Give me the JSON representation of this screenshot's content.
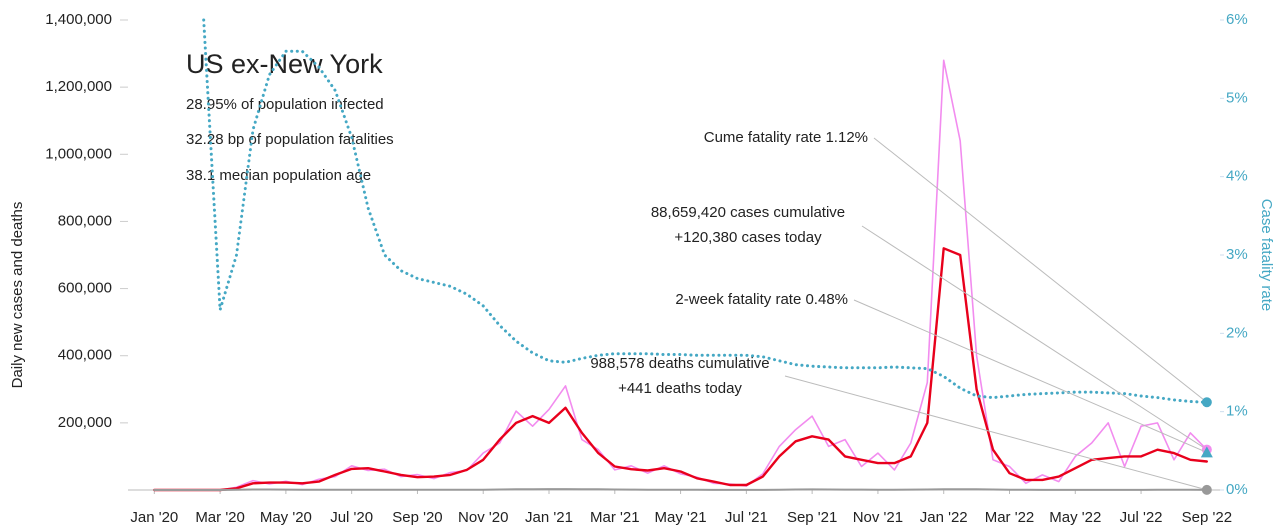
{
  "chart_data": {
    "type": "line",
    "title": "US ex-New York",
    "subtitle_lines": [
      "28.95% of population infected",
      "32.28 bp of population fatalities",
      "38.1 median population age"
    ],
    "ylabel": "Daily new cases and deaths",
    "y2label": "Case fatality rate",
    "xlim": [
      -0.8,
      32.4
    ],
    "xticks": [
      {
        "value": 0,
        "label": "Jan '20"
      },
      {
        "value": 2,
        "label": "Mar '20"
      },
      {
        "value": 4,
        "label": "May '20"
      },
      {
        "value": 6,
        "label": "Jul '20"
      },
      {
        "value": 8,
        "label": "Sep '20"
      },
      {
        "value": 10,
        "label": "Nov '20"
      },
      {
        "value": 12,
        "label": "Jan '21"
      },
      {
        "value": 14,
        "label": "Mar '21"
      },
      {
        "value": 16,
        "label": "May '21"
      },
      {
        "value": 18,
        "label": "Jul '21"
      },
      {
        "value": 20,
        "label": "Sep '21"
      },
      {
        "value": 22,
        "label": "Nov '21"
      },
      {
        "value": 24,
        "label": "Jan '22"
      },
      {
        "value": 26,
        "label": "Mar '22"
      },
      {
        "value": 28,
        "label": "May '22"
      },
      {
        "value": 30,
        "label": "Jul '22"
      },
      {
        "value": 32,
        "label": "Sep '22"
      }
    ],
    "ylim": [
      0,
      1400000
    ],
    "yticks": [
      {
        "value": 200000,
        "label": "200,000"
      },
      {
        "value": 400000,
        "label": "400,000"
      },
      {
        "value": 600000,
        "label": "600,000"
      },
      {
        "value": 800000,
        "label": "800,000"
      },
      {
        "value": 1000000,
        "label": "1,000,000"
      },
      {
        "value": 1200000,
        "label": "1,200,000"
      },
      {
        "value": 1400000,
        "label": "1,400,000"
      }
    ],
    "y2lim": [
      0,
      6
    ],
    "y2ticks": [
      {
        "value": 0,
        "label": "0%"
      },
      {
        "value": 1,
        "label": "1%"
      },
      {
        "value": 2,
        "label": "2%"
      },
      {
        "value": 3,
        "label": "3%"
      },
      {
        "value": 4,
        "label": "4%"
      },
      {
        "value": 5,
        "label": "5%"
      },
      {
        "value": 6,
        "label": "6%"
      }
    ],
    "x": [
      0,
      0.5,
      1,
      1.5,
      2,
      2.5,
      3,
      3.5,
      4,
      4.5,
      5,
      5.5,
      6,
      6.5,
      7,
      7.5,
      8,
      8.5,
      9,
      9.5,
      10,
      10.5,
      11,
      11.5,
      12,
      12.5,
      13,
      13.5,
      14,
      14.5,
      15,
      15.5,
      16,
      16.5,
      17,
      17.5,
      18,
      18.5,
      19,
      19.5,
      20,
      20.5,
      21,
      21.5,
      22,
      22.5,
      23,
      23.5,
      24,
      24.5,
      25,
      25.5,
      26,
      26.5,
      27,
      27.5,
      28,
      28.5,
      29,
      29.5,
      30,
      30.5,
      31,
      31.5,
      32
    ],
    "series": [
      {
        "color": "#f28cef",
        "width": 1.6,
        "values": [
          0,
          0,
          0,
          0,
          0,
          8000,
          28000,
          18000,
          26000,
          16000,
          32000,
          40000,
          72000,
          58000,
          62000,
          40000,
          46000,
          34000,
          52000,
          58000,
          110000,
          140000,
          235000,
          190000,
          240000,
          310000,
          150000,
          120000,
          60000,
          72000,
          50000,
          72000,
          48000,
          38000,
          20000,
          18000,
          12000,
          48000,
          130000,
          180000,
          220000,
          130000,
          150000,
          70000,
          110000,
          60000,
          140000,
          320000,
          1280000,
          1040000,
          400000,
          90000,
          70000,
          20000,
          45000,
          25000,
          100000,
          140000,
          200000,
          70000,
          190000,
          200000,
          90000,
          170000,
          120380
        ]
      },
      {
        "color": "#e8001c",
        "width": 2.4,
        "values": [
          0,
          0,
          0,
          0,
          0,
          5000,
          20000,
          22000,
          22000,
          20000,
          25000,
          45000,
          63000,
          65000,
          55000,
          45000,
          38000,
          40000,
          45000,
          60000,
          90000,
          150000,
          200000,
          220000,
          200000,
          245000,
          170000,
          110000,
          70000,
          62000,
          58000,
          65000,
          55000,
          35000,
          25000,
          15000,
          15000,
          40000,
          100000,
          145000,
          160000,
          150000,
          100000,
          90000,
          80000,
          80000,
          100000,
          200000,
          720000,
          700000,
          300000,
          120000,
          50000,
          30000,
          30000,
          40000,
          65000,
          90000,
          95000,
          100000,
          100000,
          120000,
          110000,
          90000,
          85000
        ]
      },
      {
        "color": "#999999",
        "width": 2,
        "values": [
          0,
          0,
          0,
          0,
          0,
          500,
          1500,
          1500,
          1200,
          900,
          700,
          800,
          1000,
          1000,
          900,
          800,
          700,
          600,
          600,
          700,
          1000,
          1500,
          2200,
          2500,
          2600,
          2800,
          2500,
          2000,
          1500,
          1200,
          1000,
          800,
          700,
          500,
          300,
          250,
          250,
          400,
          900,
          1500,
          1800,
          1500,
          1200,
          1100,
          1000,
          1000,
          1200,
          1500,
          2000,
          2400,
          2200,
          1500,
          1000,
          600,
          400,
          350,
          300,
          300,
          350,
          400,
          400,
          450,
          450,
          450,
          441
        ]
      },
      {
        "color": "#45a8c4",
        "width": 3,
        "dashed": true,
        "axis": "y2",
        "values": [
          null,
          null,
          null,
          6,
          2.3,
          3.0,
          4.6,
          5.3,
          5.6,
          5.6,
          5.4,
          5.1,
          4.5,
          3.6,
          3.0,
          2.8,
          2.7,
          2.65,
          2.6,
          2.5,
          2.35,
          2.1,
          1.9,
          1.75,
          1.65,
          1.63,
          1.68,
          1.72,
          1.74,
          1.74,
          1.74,
          1.73,
          1.73,
          1.72,
          1.72,
          1.72,
          1.72,
          1.7,
          1.65,
          1.6,
          1.58,
          1.57,
          1.56,
          1.56,
          1.56,
          1.57,
          1.56,
          1.55,
          1.45,
          1.3,
          1.2,
          1.18,
          1.2,
          1.22,
          1.23,
          1.24,
          1.25,
          1.25,
          1.24,
          1.23,
          1.2,
          1.18,
          1.15,
          1.13,
          1.12
        ]
      }
    ],
    "annotations": [
      {
        "lines": [
          "Cume fatality rate 1.12%"
        ],
        "value": 1.12,
        "axis": "y2",
        "color": "#45a8c4",
        "shape": "circle"
      },
      {
        "lines": [
          "88,659,420 cases cumulative",
          "+120,380 cases today"
        ],
        "value": 120380,
        "axis": "y",
        "color": "#f28cef",
        "shape": "circle"
      },
      {
        "lines": [
          "2-week fatality rate 0.48%"
        ],
        "value": 0.48,
        "axis": "y2",
        "color": "#45a8c4",
        "shape": "triangle"
      },
      {
        "lines": [
          "988,578 deaths cumulative",
          "+441 deaths today"
        ],
        "value": 441,
        "axis": "y",
        "color": "#999999",
        "shape": "circle"
      }
    ]
  }
}
